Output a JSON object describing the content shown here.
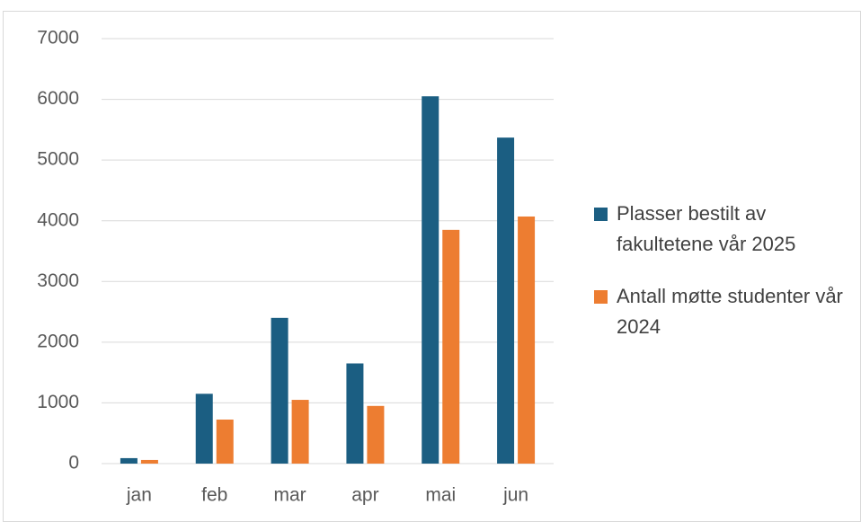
{
  "chart_data": {
    "type": "bar",
    "categories": [
      "jan",
      "feb",
      "mar",
      "apr",
      "mai",
      "jun"
    ],
    "series": [
      {
        "name": "Plasser bestilt av fakultetene vår 2025",
        "color": "#1b5e82",
        "values": [
          90,
          1150,
          2400,
          1650,
          6050,
          5370
        ]
      },
      {
        "name": "Antall møtte studenter vår 2024",
        "color": "#ed7d31",
        "values": [
          60,
          725,
          1050,
          950,
          3850,
          4070
        ]
      }
    ],
    "ylim": [
      0,
      7000
    ],
    "yticks": [
      0,
      1000,
      2000,
      3000,
      4000,
      5000,
      6000,
      7000
    ],
    "grid": true,
    "legend": "right"
  }
}
